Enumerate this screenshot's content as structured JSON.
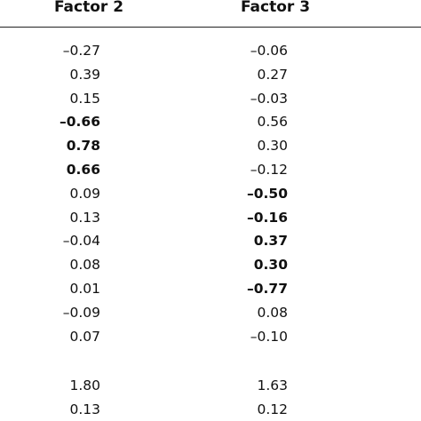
{
  "table": {
    "header": [
      "Factor 2",
      "Factor 3"
    ],
    "rows": [
      [
        {
          "text": "–0.27"
        },
        {
          "text": "–0.06"
        }
      ],
      [
        {
          "text": "0.39"
        },
        {
          "text": "0.27"
        }
      ],
      [
        {
          "text": "0.15"
        },
        {
          "text": "–0.03"
        }
      ],
      [
        {
          "text": "–0.66",
          "bold": true
        },
        {
          "text": "0.56"
        }
      ],
      [
        {
          "text": "0.78",
          "bold": true
        },
        {
          "text": "0.30"
        }
      ],
      [
        {
          "text": "0.66",
          "bold": true
        },
        {
          "text": "–0.12"
        }
      ],
      [
        {
          "text": "0.09"
        },
        {
          "text": "–0.50",
          "bold": true
        }
      ],
      [
        {
          "text": "0.13"
        },
        {
          "text": "–0.16",
          "bold": true
        }
      ],
      [
        {
          "text": "–0.04"
        },
        {
          "text": "0.37",
          "bold": true
        }
      ],
      [
        {
          "text": "0.08"
        },
        {
          "text": "0.30",
          "bold": true
        }
      ],
      [
        {
          "text": "0.01"
        },
        {
          "text": "–0.77",
          "bold": true
        }
      ],
      [
        {
          "text": "–0.09"
        },
        {
          "text": "0.08"
        }
      ],
      [
        {
          "text": "0.07"
        },
        {
          "text": "–0.10"
        }
      ]
    ],
    "summary_rows": [
      [
        {
          "text": "1.80"
        },
        {
          "text": "1.63"
        }
      ],
      [
        {
          "text": "0.13"
        },
        {
          "text": "0.12"
        }
      ]
    ]
  }
}
